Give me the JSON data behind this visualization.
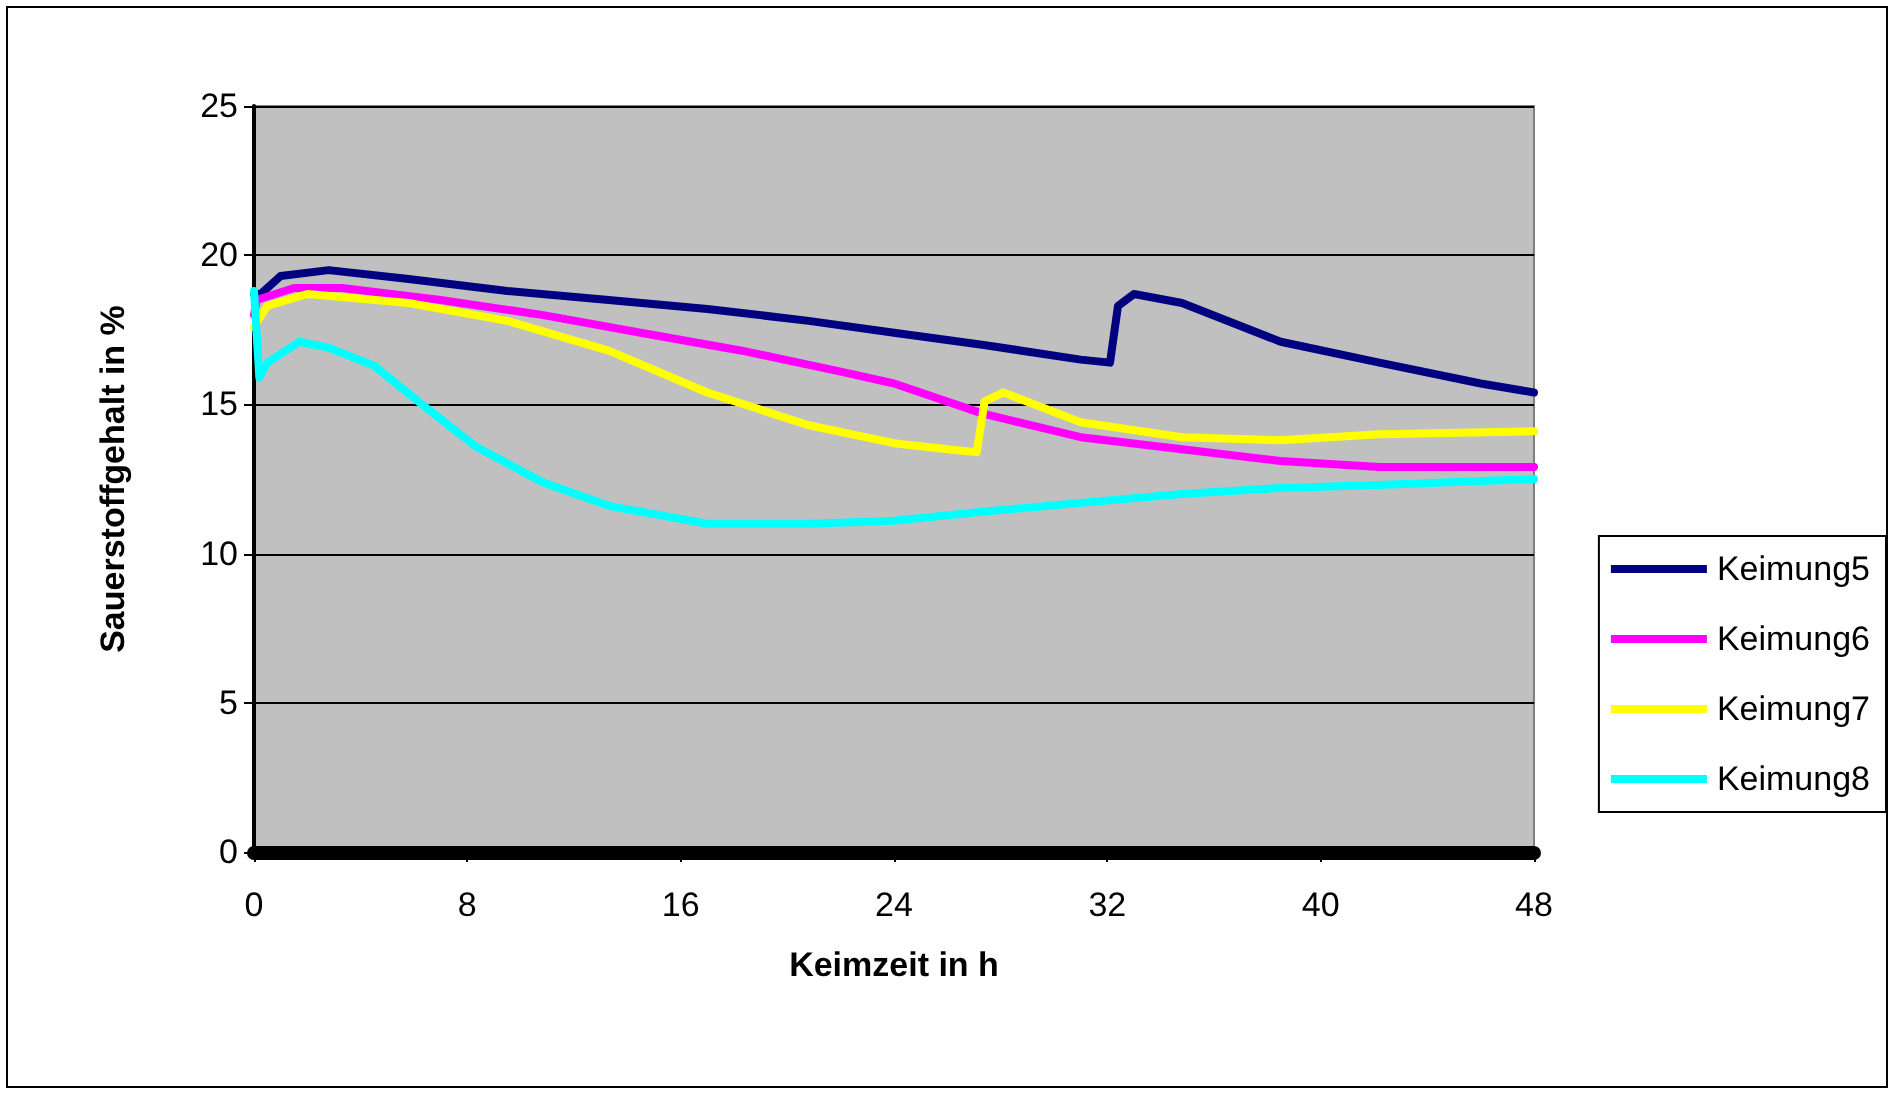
{
  "chart_data": {
    "type": "line",
    "xlabel": "Keimzeit in h",
    "ylabel": "Sauerstoffgehalt in %",
    "xlim": [
      0,
      48
    ],
    "xticks": [
      0,
      8,
      16,
      24,
      32,
      40,
      48
    ],
    "ylim": [
      0,
      25
    ],
    "yticks": [
      0,
      5,
      10,
      15,
      20,
      25
    ],
    "grid": "y",
    "legend": "right",
    "marker": "none",
    "line_style": "solid",
    "series": [
      {
        "name": "Keimung5",
        "color": "#000080",
        "x": [
          0,
          0.25,
          1,
          2.8,
          5.8,
          9.5,
          13.3,
          17,
          20.8,
          24,
          27.3,
          31,
          32.1,
          32.4,
          33,
          34.8,
          38.5,
          42.2,
          46,
          48
        ],
        "values": [
          18.7,
          18.7,
          19.3,
          19.5,
          19.2,
          18.8,
          18.5,
          18.2,
          17.8,
          17.4,
          17.0,
          16.5,
          16.4,
          18.3,
          18.7,
          18.4,
          17.1,
          16.4,
          15.7,
          15.4
        ]
      },
      {
        "name": "Keimung6",
        "color": "#ff00ff",
        "x": [
          0,
          0.1,
          1.5,
          3.3,
          7,
          10.8,
          14.5,
          18.3,
          22,
          24,
          27.3,
          31,
          34.8,
          38.5,
          42.2,
          48
        ],
        "values": [
          18.0,
          18.5,
          18.9,
          18.9,
          18.5,
          18.0,
          17.4,
          16.8,
          16.1,
          15.7,
          14.7,
          13.9,
          13.5,
          13.1,
          12.9,
          12.9
        ]
      },
      {
        "name": "Keimung7",
        "color": "#ffff00",
        "x": [
          0,
          0.5,
          2,
          5.8,
          9.5,
          13.3,
          17,
          20.8,
          24,
          26,
          27.1,
          27.4,
          28.1,
          31,
          34.8,
          38.5,
          42.2,
          48
        ],
        "values": [
          17.6,
          18.3,
          18.7,
          18.4,
          17.8,
          16.8,
          15.4,
          14.3,
          13.7,
          13.5,
          13.4,
          15.1,
          15.4,
          14.4,
          13.9,
          13.8,
          14.0,
          14.1
        ]
      },
      {
        "name": "Keimung8",
        "color": "#00ffff",
        "x": [
          0,
          0.2,
          0.5,
          1.7,
          2.8,
          4.5,
          6.3,
          8.3,
          10.8,
          13.3,
          17,
          20.8,
          24,
          27.3,
          31,
          34.8,
          38.5,
          42.2,
          48
        ],
        "values": [
          18.8,
          15.9,
          16.4,
          17.1,
          16.9,
          16.3,
          15.0,
          13.6,
          12.4,
          11.6,
          11.0,
          11.0,
          11.1,
          11.4,
          11.7,
          12.0,
          12.2,
          12.3,
          12.5
        ]
      }
    ]
  }
}
